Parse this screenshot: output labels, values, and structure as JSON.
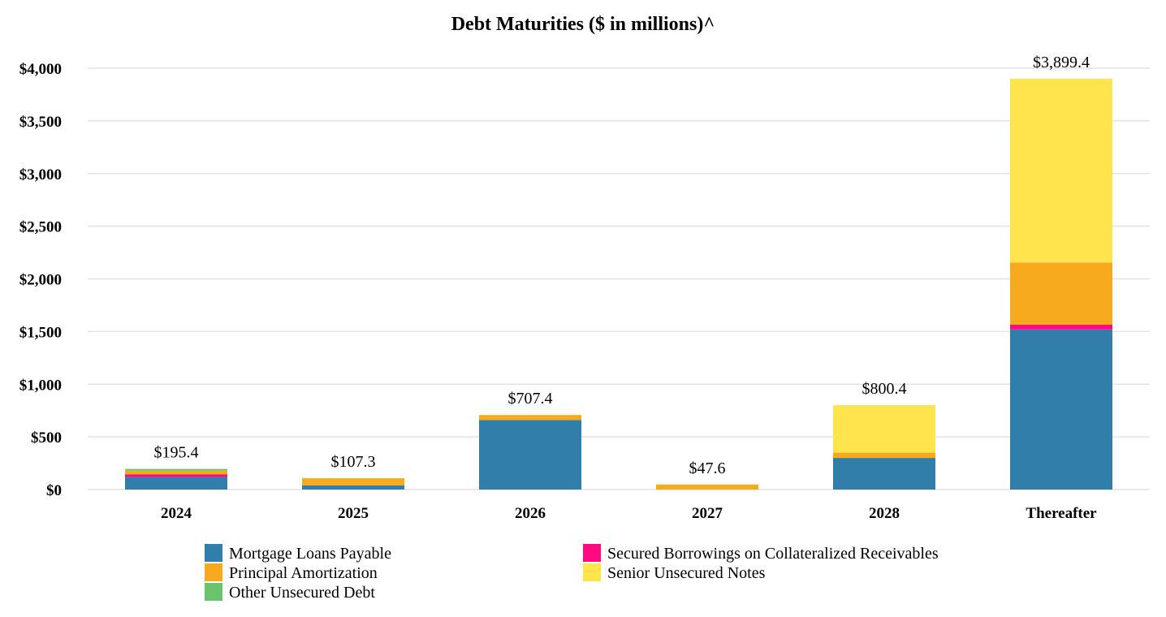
{
  "chart_data": {
    "type": "bar",
    "stacked": true,
    "title": "Debt Maturities ($ in millions)^",
    "xlabel": "",
    "ylabel": "",
    "categories": [
      "2024",
      "2025",
      "2026",
      "2027",
      "2028",
      "Thereafter"
    ],
    "ylim": [
      0,
      4000
    ],
    "yticks": [
      0,
      500,
      1000,
      1500,
      2000,
      2500,
      3000,
      3500,
      4000
    ],
    "ytick_labels": [
      "$0",
      "$500",
      "$1,000",
      "$1,500",
      "$2,000",
      "$2,500",
      "$3,000",
      "$3,500",
      "$4,000"
    ],
    "grid": true,
    "legend_position": "bottom",
    "totals": [
      195.4,
      107.3,
      707.4,
      47.6,
      800.4,
      3899.4
    ],
    "total_labels": [
      "$195.4",
      "$107.3",
      "$707.4",
      "$47.6",
      "$800.4",
      "$3,899.4"
    ],
    "series": [
      {
        "name": "Mortgage Loans Payable",
        "color": "#317eab",
        "values": [
          120,
          40,
          660,
          0,
          300,
          1520
        ]
      },
      {
        "name": "Secured Borrowings on Collateralized Receivables",
        "color": "#ff0a82",
        "values": [
          25,
          0,
          0,
          0,
          0,
          45
        ]
      },
      {
        "name": "Principal Amortization",
        "color": "#f7aa1d",
        "values": [
          35,
          67.3,
          47.4,
          47.6,
          50,
          590
        ]
      },
      {
        "name": "Senior Unsecured Notes",
        "color": "#ffe44d",
        "values": [
          0,
          0,
          0,
          0,
          450.4,
          1744.4
        ]
      },
      {
        "name": "Other Unsecured Debt",
        "color": "#6cc36d",
        "values": [
          15.4,
          0,
          0,
          0,
          0,
          0
        ]
      }
    ],
    "legend_order": [
      "Mortgage Loans Payable",
      "Secured Borrowings on Collateralized Receivables",
      "Principal Amortization",
      "Senior Unsecured Notes",
      "Other Unsecured Debt"
    ]
  }
}
